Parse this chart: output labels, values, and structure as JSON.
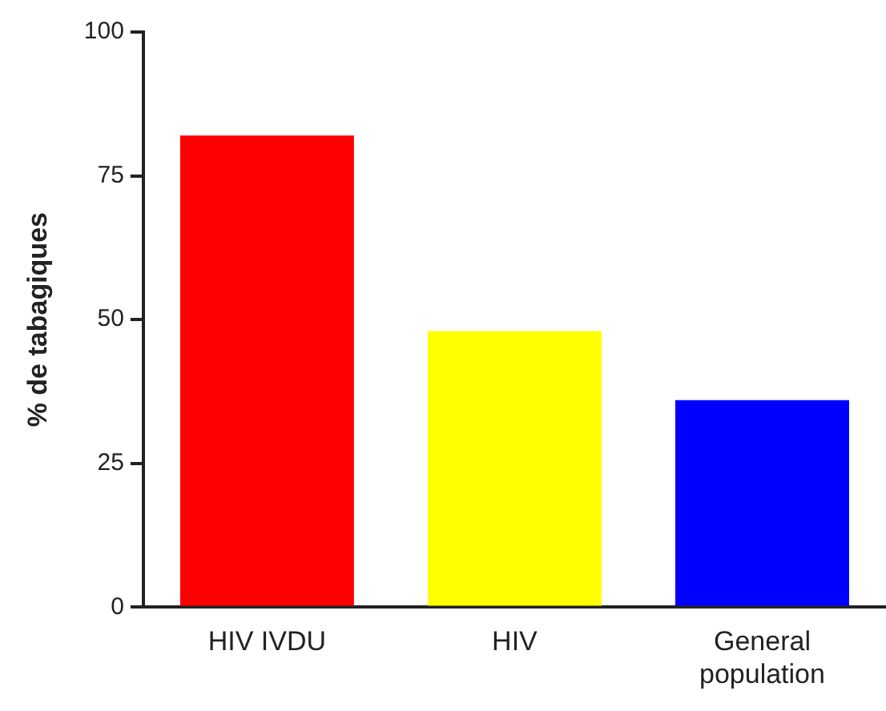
{
  "chart_data": {
    "type": "bar",
    "ylabel": "% de tabagiques",
    "categories": [
      "HIV IVDU",
      "HIV",
      "General population"
    ],
    "values": [
      82,
      48,
      36
    ],
    "colors": [
      "#ff0000",
      "#ffff00",
      "#0000ff"
    ],
    "ylim": [
      0,
      100
    ],
    "yticks": [
      0,
      25,
      50,
      75,
      100
    ],
    "grid": false,
    "legend": false
  }
}
